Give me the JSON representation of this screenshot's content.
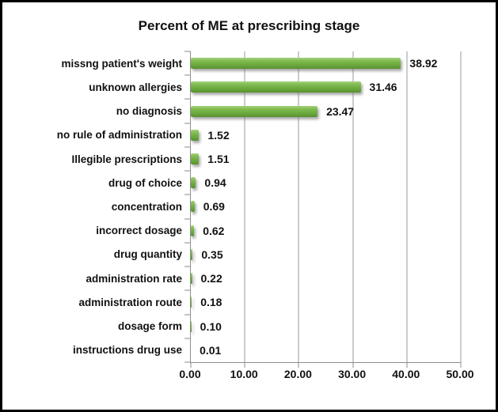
{
  "title": "Percent of ME at prescribing stage",
  "chart_data": {
    "type": "bar",
    "orientation": "horizontal",
    "title": "Percent of ME at prescribing stage",
    "categories": [
      "missng patient's weight",
      "unknown allergies",
      "no diagnosis",
      "no rule of administration",
      "Illegible prescriptions",
      "drug of choice",
      "concentration",
      "incorrect dosage",
      "drug quantity",
      "administration rate",
      "administration route",
      "dosage form",
      "instructions drug use"
    ],
    "values": [
      38.92,
      31.46,
      23.47,
      1.52,
      1.51,
      0.94,
      0.69,
      0.62,
      0.35,
      0.22,
      0.18,
      0.1,
      0.01
    ],
    "value_labels": [
      "38.92",
      "31.46",
      "23.47",
      "1.52",
      "1.51",
      "0.94",
      "0.69",
      "0.62",
      "0.35",
      "0.22",
      "0.18",
      "0.10",
      "0.01"
    ],
    "x_ticks": [
      "0.00",
      "10.00",
      "20.00",
      "30.00",
      "40.00",
      "50.00"
    ],
    "x_tick_values": [
      0,
      10,
      20,
      30,
      40,
      50
    ],
    "xlim": [
      0,
      50
    ],
    "grid": "vertical gridlines on",
    "legend": "none",
    "colors": {
      "bar": "#6fae41",
      "gridline": "#9a9a9a",
      "axis": "#8e8e8e",
      "text": "#111111",
      "frame_border": "#000000",
      "background": "#ffffff"
    }
  }
}
